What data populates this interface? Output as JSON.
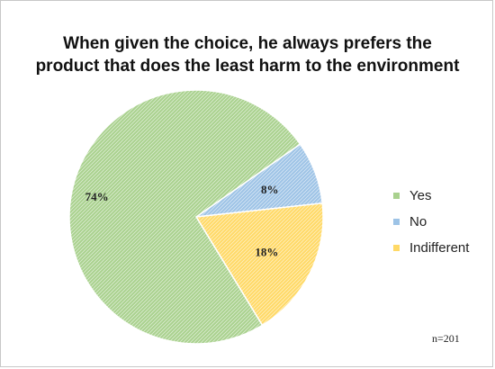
{
  "chart_data": {
    "type": "pie",
    "title_lines": [
      "When given the choice, he always prefers the",
      "product that does the least harm to the environment"
    ],
    "slices": [
      {
        "name": "Yes",
        "value": 74,
        "label": "74%",
        "color": "#a9d18e"
      },
      {
        "name": "No",
        "value": 8,
        "label": "8%",
        "color": "#9dc3e6"
      },
      {
        "name": "Indifferent",
        "value": 18,
        "label": "18%",
        "color": "#ffd966"
      }
    ],
    "legend_position": "right",
    "note": "n=201"
  }
}
